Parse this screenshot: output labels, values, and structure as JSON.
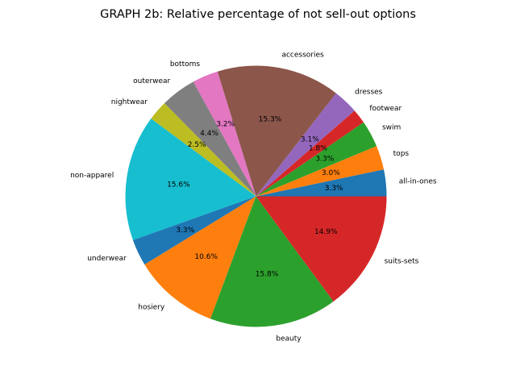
{
  "chart_data": {
    "type": "pie",
    "title": "GRAPH 2b: Relative percentage of not sell-out options",
    "start_angle_deg": 0,
    "direction": "counterclockwise",
    "slices": [
      {
        "label": "all-in-ones",
        "value": 3.3,
        "pct_label": "3.3%",
        "color": "#1f77b4"
      },
      {
        "label": "tops",
        "value": 3.0,
        "pct_label": "3.0%",
        "color": "#ff7f0e"
      },
      {
        "label": "swim",
        "value": 3.3,
        "pct_label": "3.3%",
        "color": "#2ca02c"
      },
      {
        "label": "footwear",
        "value": 1.8,
        "pct_label": "1.8%",
        "color": "#d62728"
      },
      {
        "label": "dresses",
        "value": 3.1,
        "pct_label": "3.1%",
        "color": "#9467bd"
      },
      {
        "label": "accessories",
        "value": 15.3,
        "pct_label": "15.3%",
        "color": "#8c564b"
      },
      {
        "label": "bottoms",
        "value": 3.2,
        "pct_label": "3.2%",
        "color": "#e377c2"
      },
      {
        "label": "outerwear",
        "value": 4.4,
        "pct_label": "4.4%",
        "color": "#7f7f7f"
      },
      {
        "label": "nightwear",
        "value": 2.5,
        "pct_label": "2.5%",
        "color": "#bcbd22"
      },
      {
        "label": "non-apparel",
        "value": 15.6,
        "pct_label": "15.6%",
        "color": "#17becf"
      },
      {
        "label": "underwear",
        "value": 3.3,
        "pct_label": "3.3%",
        "color": "#1f77b4"
      },
      {
        "label": "hosiery",
        "value": 10.6,
        "pct_label": "10.6%",
        "color": "#ff7f0e"
      },
      {
        "label": "beauty",
        "value": 15.8,
        "pct_label": "15.8%",
        "color": "#2ca02c"
      },
      {
        "label": "suits-sets",
        "value": 14.9,
        "pct_label": "14.9%",
        "color": "#d62728"
      }
    ]
  }
}
